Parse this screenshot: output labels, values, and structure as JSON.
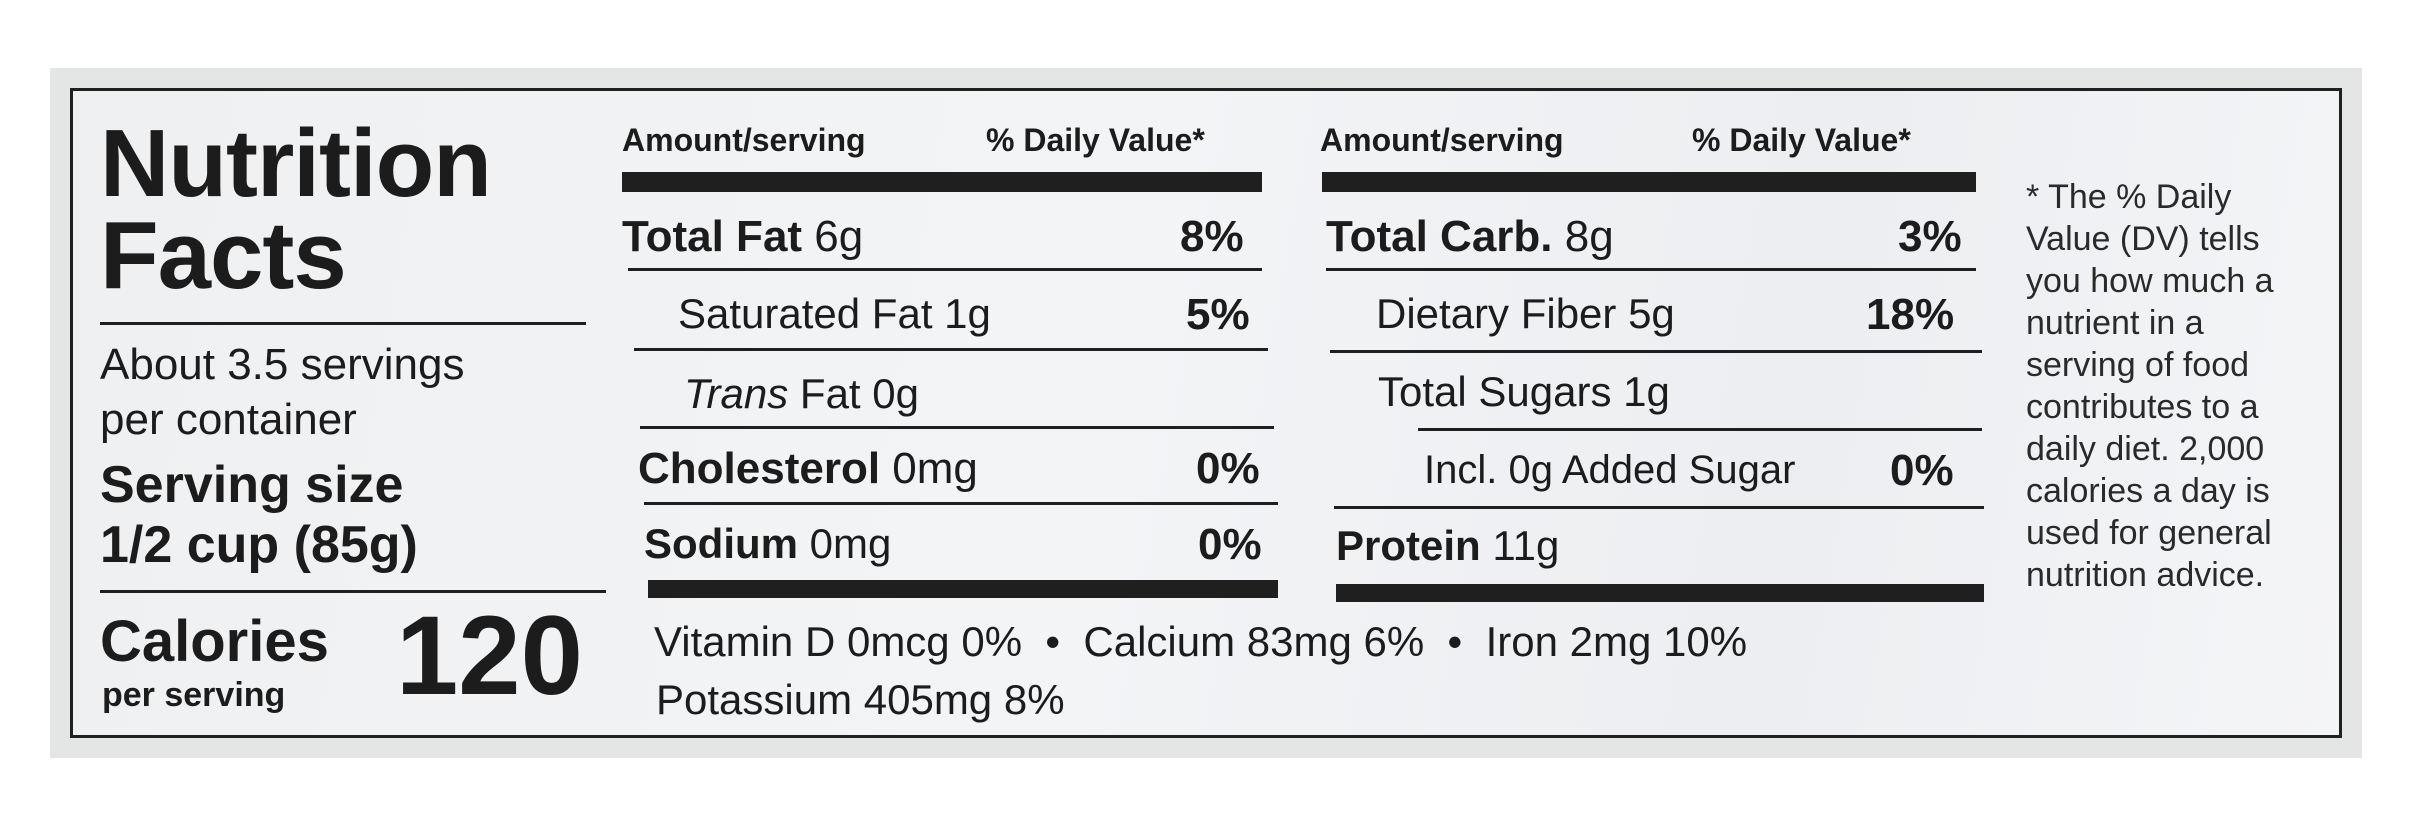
{
  "title": {
    "line1": "Nutrition",
    "line2": "Facts"
  },
  "servings": {
    "line1": "About 3.5 servings",
    "line2": "per container"
  },
  "serving_size": {
    "label": "Serving size",
    "value": "1/2 cup (85g)"
  },
  "calories": {
    "label": "Calories",
    "sub": "per serving",
    "value": "120"
  },
  "left_col": {
    "header_amount": "Amount/serving",
    "header_dv": "% Daily Value*",
    "rows": [
      {
        "name": "Total Fat",
        "amount": "6g",
        "dv": "8%"
      },
      {
        "name": "Saturated Fat",
        "amount": "1g",
        "dv": "5%"
      },
      {
        "name": "Trans",
        "name_rest": "Fat",
        "amount": "0g",
        "dv": ""
      },
      {
        "name": "Cholesterol",
        "amount": "0mg",
        "dv": "0%"
      },
      {
        "name": "Sodium",
        "amount": "0mg",
        "dv": "0%"
      }
    ]
  },
  "right_col": {
    "header_amount": "Amount/serving",
    "header_dv": "% Daily Value*",
    "rows": [
      {
        "name": "Total Carb.",
        "amount": "8g",
        "dv": "3%"
      },
      {
        "name": "Dietary Fiber",
        "amount": "5g",
        "dv": "18%"
      },
      {
        "name": "Total Sugars",
        "amount": "1g",
        "dv": ""
      },
      {
        "name": "Incl. 0g Added Sugar",
        "amount": "",
        "dv": "0%"
      },
      {
        "name": "Protein",
        "amount": "11g",
        "dv": ""
      }
    ]
  },
  "vitamins": {
    "line1": "Vitamin D 0mcg 0%  •  Calcium 83mg 6%  •  Iron 2mg 10%",
    "line2": "Potassium 405mg 8%"
  },
  "footnote": "* The % Daily Value (DV) tells you how much a nutrient in a serving of food contributes to a daily diet. 2,000 calories a day is used for general nutrition advice."
}
